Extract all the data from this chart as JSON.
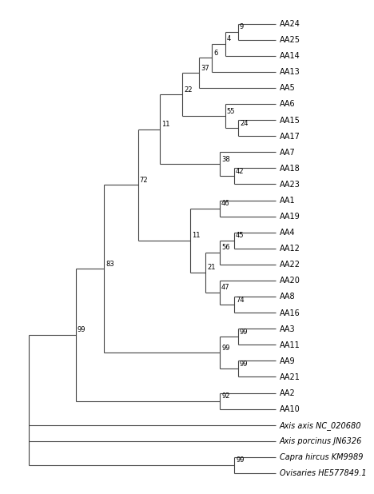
{
  "figsize": [
    4.74,
    6.04
  ],
  "dpi": 100,
  "bg_color": "#ffffff",
  "line_color": "#444444",
  "text_color": "#000000",
  "font_size": 7,
  "bootstrap_font_size": 6,
  "leaf_y": {
    "AA24": 29,
    "AA25": 28,
    "AA14": 27,
    "AA13": 26,
    "AA5": 25,
    "AA6": 24,
    "AA15": 23,
    "AA17": 22,
    "AA7": 21,
    "AA18": 20,
    "AA23": 19,
    "AA1": 18,
    "AA19": 17,
    "AA4": 16,
    "AA12": 15,
    "AA22": 14,
    "AA20": 13,
    "AA8": 12,
    "AA16": 11,
    "AA3": 10,
    "AA11": 9,
    "AA9": 8,
    "AA21": 7,
    "AA2": 6,
    "AA10": 5,
    "Axis axis NC_020680": 4,
    "Axis porcinus JN6326": 3,
    "Capra hircus KM9989": 2,
    "Ovisaries HE577849.1": 1
  },
  "x_tip": 10.0,
  "xlim": [
    -0.3,
    13.5
  ],
  "ylim": [
    0.2,
    30.0
  ]
}
